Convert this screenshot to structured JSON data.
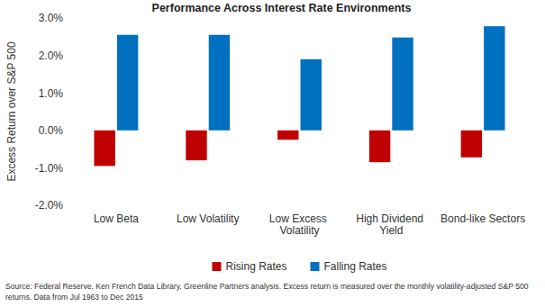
{
  "chart_data": {
    "type": "bar",
    "title": "Performance Across Interest Rate Environments",
    "y_label": "Excess Return over S&P 500",
    "categories": [
      "Low Beta",
      "Low Volatility",
      "Low Excess Volatility",
      "High Dividend Yield",
      "Bond-like Sectors"
    ],
    "series": [
      {
        "name": "Rising Rates",
        "color": "#c00000",
        "values": [
          -0.95,
          -0.8,
          -0.25,
          -0.85,
          -0.72
        ]
      },
      {
        "name": "Falling Rates",
        "color": "#0070c0",
        "values": [
          2.55,
          2.55,
          1.9,
          2.48,
          2.78
        ]
      }
    ],
    "ylim": [
      -2,
      3
    ],
    "yticks": [
      {
        "value": -2,
        "label": "-2.0%"
      },
      {
        "value": -1,
        "label": "-1.0%"
      },
      {
        "value": 0,
        "label": "0.0%"
      },
      {
        "value": 1,
        "label": "1.0%"
      },
      {
        "value": 2,
        "label": "2.0%"
      },
      {
        "value": 3,
        "label": "3.0%"
      }
    ],
    "grid": false,
    "legend": "bottom",
    "annotations": [
      "Source: Federal Reserve, Ken French Data Library, Greenline Partners analysis.  Excess return is measured over the monthly volatility-adjusted S&P 500",
      "returns. Data from Jul 1963 to Dec 2015"
    ]
  }
}
